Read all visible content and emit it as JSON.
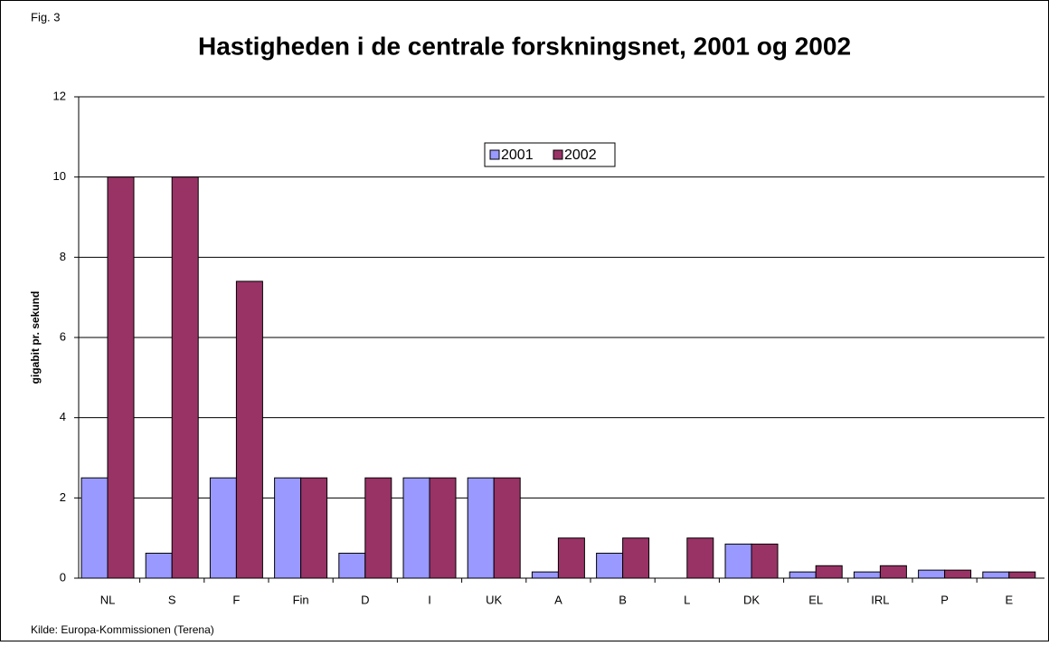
{
  "chart_data": {
    "type": "bar",
    "figure_label": "Fig. 3",
    "title": "Hastigheden i de centrale forskningsnet, 2001 og 2002",
    "y_label": "gigabit pr. sekund",
    "source": "Kilde: Europa-Kommissionen (Terena)",
    "categories": [
      "NL",
      "S",
      "F",
      "Fin",
      "D",
      "I",
      "UK",
      "A",
      "B",
      "L",
      "DK",
      "EL",
      "IRL",
      "P",
      "E"
    ],
    "series": [
      {
        "name": "2001",
        "color": "#9999ff",
        "values": [
          2.5,
          0.622,
          2.5,
          2.5,
          0.622,
          2.5,
          2.5,
          0.155,
          0.622,
          0,
          0.85,
          0.155,
          0.155,
          0.2,
          0.155
        ]
      },
      {
        "name": "2002",
        "color": "#993366",
        "values": [
          10,
          10,
          7.4,
          2.5,
          2.5,
          2.5,
          2.5,
          1,
          1,
          1,
          0.85,
          0.31,
          0.31,
          0.2,
          0.155
        ]
      }
    ],
    "ylim": [
      0,
      12
    ],
    "yticks": [
      0,
      2,
      4,
      6,
      8,
      10,
      12
    ],
    "grid": true,
    "legend": "top"
  }
}
